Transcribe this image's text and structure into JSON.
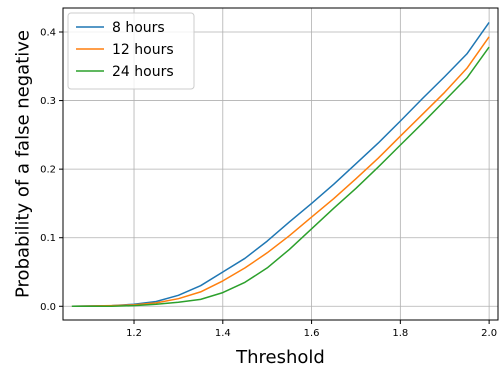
{
  "chart_data": {
    "type": "line",
    "xlabel": "Threshold",
    "ylabel": "Probability of a false negative",
    "xlim": [
      1.04,
      2.02
    ],
    "ylim": [
      -0.02,
      0.435
    ],
    "xticks": [
      1.2,
      1.4,
      1.6,
      1.8,
      2.0
    ],
    "xtick_labels": [
      "1.2",
      "1.4",
      "1.6",
      "1.8",
      "2.0"
    ],
    "yticks": [
      0.0,
      0.1,
      0.2,
      0.3,
      0.4
    ],
    "ytick_labels": [
      "0.0",
      "0.1",
      "0.2",
      "0.3",
      "0.4"
    ],
    "grid": true,
    "legend_position": "top-left",
    "series": [
      {
        "name": "8 hours",
        "color": "#1f77b4",
        "x": [
          1.06,
          1.15,
          1.2,
          1.25,
          1.3,
          1.35,
          1.4,
          1.45,
          1.5,
          1.55,
          1.6,
          1.65,
          1.7,
          1.75,
          1.8,
          1.85,
          1.9,
          1.95,
          2.0
        ],
        "y": [
          0.0,
          0.001,
          0.003,
          0.007,
          0.016,
          0.03,
          0.05,
          0.07,
          0.095,
          0.123,
          0.15,
          0.178,
          0.208,
          0.238,
          0.27,
          0.303,
          0.335,
          0.368,
          0.414
        ]
      },
      {
        "name": "12 hours",
        "color": "#ff7f0e",
        "x": [
          1.06,
          1.15,
          1.2,
          1.25,
          1.3,
          1.35,
          1.4,
          1.45,
          1.5,
          1.55,
          1.6,
          1.65,
          1.7,
          1.75,
          1.8,
          1.85,
          1.9,
          1.95,
          2.0
        ],
        "y": [
          0.0,
          0.001,
          0.002,
          0.005,
          0.011,
          0.021,
          0.037,
          0.056,
          0.078,
          0.103,
          0.13,
          0.157,
          0.186,
          0.216,
          0.248,
          0.28,
          0.312,
          0.347,
          0.393
        ]
      },
      {
        "name": "24 hours",
        "color": "#2ca02c",
        "x": [
          1.06,
          1.15,
          1.2,
          1.25,
          1.3,
          1.35,
          1.4,
          1.45,
          1.5,
          1.55,
          1.6,
          1.65,
          1.7,
          1.75,
          1.8,
          1.85,
          1.9,
          1.95,
          2.0
        ],
        "y": [
          0.0,
          0.0,
          0.001,
          0.003,
          0.006,
          0.01,
          0.02,
          0.035,
          0.056,
          0.083,
          0.113,
          0.143,
          0.172,
          0.203,
          0.235,
          0.267,
          0.3,
          0.333,
          0.378
        ]
      }
    ]
  }
}
